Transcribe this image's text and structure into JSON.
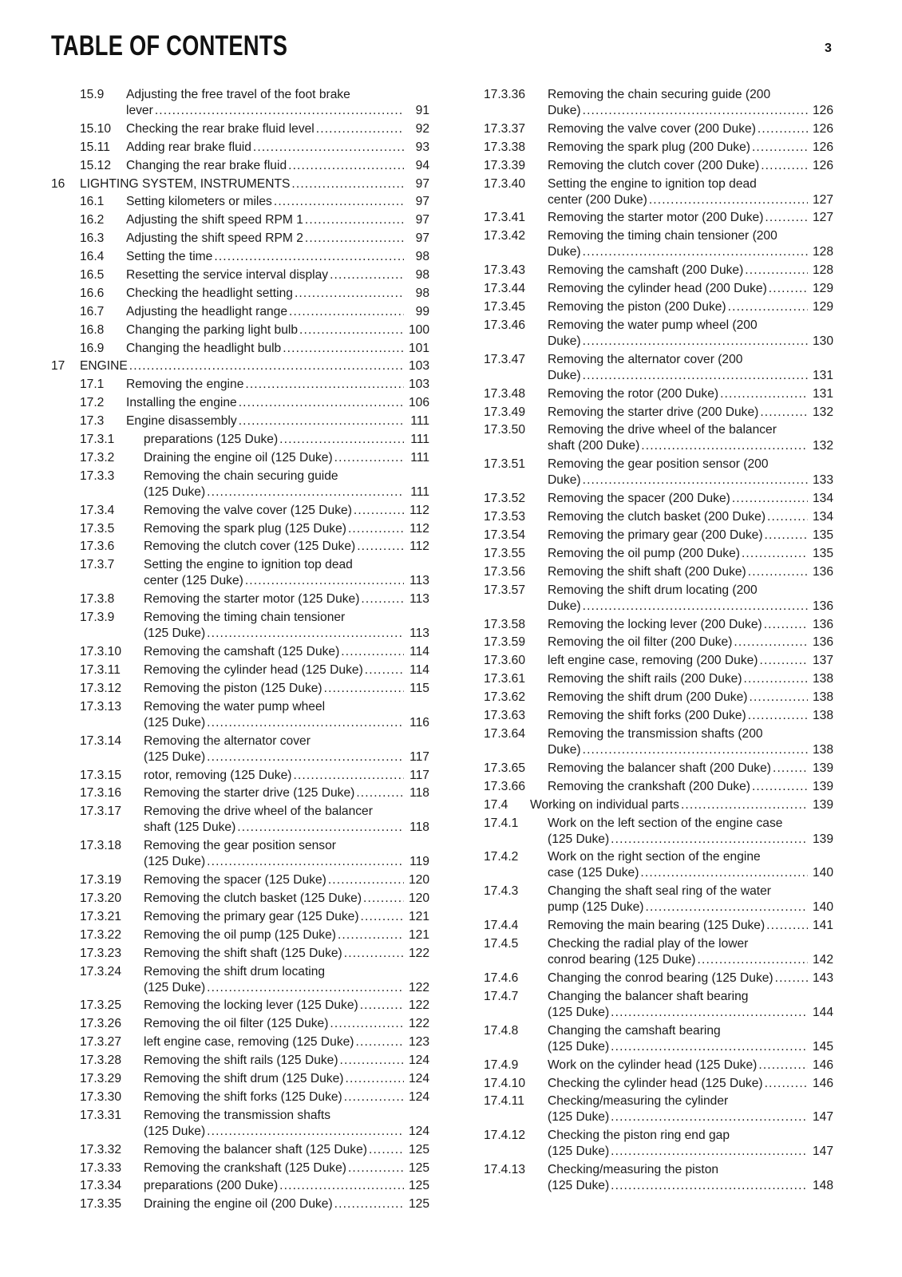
{
  "header": {
    "title": "TABLE OF CONTENTS",
    "page_number": "3"
  },
  "left": [
    {
      "n": "15.9",
      "l": 2,
      "t": [
        "Adjusting the free travel of the foot brake",
        "lever"
      ],
      "p": "91"
    },
    {
      "n": "15.10",
      "l": 2,
      "t": [
        "Checking the rear brake fluid level"
      ],
      "p": "92"
    },
    {
      "n": "15.11",
      "l": 2,
      "t": [
        "Adding rear brake fluid"
      ],
      "p": "93"
    },
    {
      "n": "15.12",
      "l": 2,
      "t": [
        "Changing the rear brake fluid"
      ],
      "p": "94"
    },
    {
      "n": "16",
      "l": 1,
      "t": [
        "LIGHTING SYSTEM, INSTRUMENTS"
      ],
      "p": "97"
    },
    {
      "n": "16.1",
      "l": 2,
      "t": [
        "Setting kilometers or miles"
      ],
      "p": "97"
    },
    {
      "n": "16.2",
      "l": 2,
      "t": [
        "Adjusting the shift speed RPM 1"
      ],
      "p": "97"
    },
    {
      "n": "16.3",
      "l": 2,
      "t": [
        "Adjusting the shift speed RPM 2"
      ],
      "p": "97"
    },
    {
      "n": "16.4",
      "l": 2,
      "t": [
        "Setting the time"
      ],
      "p": "98"
    },
    {
      "n": "16.5",
      "l": 2,
      "t": [
        "Resetting the service interval display"
      ],
      "p": "98"
    },
    {
      "n": "16.6",
      "l": 2,
      "t": [
        "Checking the headlight setting"
      ],
      "p": "98"
    },
    {
      "n": "16.7",
      "l": 2,
      "t": [
        "Adjusting the headlight range"
      ],
      "p": "99"
    },
    {
      "n": "16.8",
      "l": 2,
      "t": [
        "Changing the parking light bulb"
      ],
      "p": "100"
    },
    {
      "n": "16.9",
      "l": 2,
      "t": [
        "Changing the headlight bulb"
      ],
      "p": "101"
    },
    {
      "n": "17",
      "l": 1,
      "t": [
        "ENGINE"
      ],
      "p": "103"
    },
    {
      "n": "17.1",
      "l": 2,
      "t": [
        "Removing the engine"
      ],
      "p": "103"
    },
    {
      "n": "17.2",
      "l": 2,
      "t": [
        "Installing the engine"
      ],
      "p": "106"
    },
    {
      "n": "17.3",
      "l": 2,
      "t": [
        "Engine disassembly"
      ],
      "p": "111"
    },
    {
      "n": "17.3.1",
      "l": 3,
      "t": [
        "preparations (125 Duke)"
      ],
      "p": "111"
    },
    {
      "n": "17.3.2",
      "l": 3,
      "t": [
        "Draining the engine oil (125 Duke)"
      ],
      "p": "111"
    },
    {
      "n": "17.3.3",
      "l": 3,
      "t": [
        "Removing the chain securing guide",
        "(125 Duke)"
      ],
      "p": "111"
    },
    {
      "n": "17.3.4",
      "l": 3,
      "t": [
        "Removing the valve cover (125 Duke)"
      ],
      "p": "112"
    },
    {
      "n": "17.3.5",
      "l": 3,
      "t": [
        "Removing the spark plug (125 Duke)"
      ],
      "p": "112"
    },
    {
      "n": "17.3.6",
      "l": 3,
      "t": [
        "Removing the clutch cover (125 Duke)"
      ],
      "p": "112"
    },
    {
      "n": "17.3.7",
      "l": 3,
      "t": [
        "Setting the engine to ignition top dead",
        "center (125 Duke)"
      ],
      "p": "113"
    },
    {
      "n": "17.3.8",
      "l": 3,
      "t": [
        "Removing the starter motor (125 Duke)"
      ],
      "p": "113"
    },
    {
      "n": "17.3.9",
      "l": 3,
      "t": [
        "Removing the timing chain tensioner",
        "(125 Duke)"
      ],
      "p": "113"
    },
    {
      "n": "17.3.10",
      "l": 3,
      "t": [
        "Removing the camshaft (125 Duke)"
      ],
      "p": "114"
    },
    {
      "n": "17.3.11",
      "l": 3,
      "t": [
        "Removing the cylinder head (125 Duke)"
      ],
      "p": "114"
    },
    {
      "n": "17.3.12",
      "l": 3,
      "t": [
        "Removing the piston (125 Duke)"
      ],
      "p": "115"
    },
    {
      "n": "17.3.13",
      "l": 3,
      "t": [
        "Removing the water pump wheel",
        "(125 Duke)"
      ],
      "p": "116"
    },
    {
      "n": "17.3.14",
      "l": 3,
      "t": [
        "Removing the alternator cover",
        "(125 Duke)"
      ],
      "p": "117"
    },
    {
      "n": "17.3.15",
      "l": 3,
      "t": [
        "rotor, removing (125 Duke)"
      ],
      "p": "117"
    },
    {
      "n": "17.3.16",
      "l": 3,
      "t": [
        "Removing the starter drive (125 Duke)"
      ],
      "p": "118"
    },
    {
      "n": "17.3.17",
      "l": 3,
      "t": [
        "Removing the drive wheel of the balancer",
        "shaft (125 Duke)"
      ],
      "p": "118"
    },
    {
      "n": "17.3.18",
      "l": 3,
      "t": [
        "Removing the gear position sensor",
        "(125 Duke)"
      ],
      "p": "119"
    },
    {
      "n": "17.3.19",
      "l": 3,
      "t": [
        "Removing the spacer (125 Duke)"
      ],
      "p": "120"
    },
    {
      "n": "17.3.20",
      "l": 3,
      "t": [
        "Removing the clutch basket (125 Duke)"
      ],
      "p": "120"
    },
    {
      "n": "17.3.21",
      "l": 3,
      "t": [
        "Removing the primary gear (125 Duke)"
      ],
      "p": "121"
    },
    {
      "n": "17.3.22",
      "l": 3,
      "t": [
        "Removing the oil pump (125 Duke)"
      ],
      "p": "121"
    },
    {
      "n": "17.3.23",
      "l": 3,
      "t": [
        "Removing the shift shaft (125 Duke)"
      ],
      "p": "122"
    },
    {
      "n": "17.3.24",
      "l": 3,
      "t": [
        "Removing the shift drum locating",
        "(125 Duke)"
      ],
      "p": "122"
    },
    {
      "n": "17.3.25",
      "l": 3,
      "t": [
        "Removing the locking lever (125 Duke)"
      ],
      "p": "122"
    },
    {
      "n": "17.3.26",
      "l": 3,
      "t": [
        "Removing the oil filter (125 Duke)"
      ],
      "p": "122"
    },
    {
      "n": "17.3.27",
      "l": 3,
      "t": [
        "left engine case, removing (125 Duke)"
      ],
      "p": "123"
    },
    {
      "n": "17.3.28",
      "l": 3,
      "t": [
        "Removing the shift rails (125 Duke)"
      ],
      "p": "124"
    },
    {
      "n": "17.3.29",
      "l": 3,
      "t": [
        "Removing the shift drum (125 Duke)"
      ],
      "p": "124"
    },
    {
      "n": "17.3.30",
      "l": 3,
      "t": [
        "Removing the shift forks (125 Duke)"
      ],
      "p": "124"
    },
    {
      "n": "17.3.31",
      "l": 3,
      "t": [
        "Removing the transmission shafts",
        "(125 Duke)"
      ],
      "p": "124"
    },
    {
      "n": "17.3.32",
      "l": 3,
      "t": [
        "Removing the balancer shaft (125 Duke)"
      ],
      "p": "125"
    },
    {
      "n": "17.3.33",
      "l": 3,
      "t": [
        "Removing the crankshaft (125 Duke)"
      ],
      "p": "125"
    },
    {
      "n": "17.3.34",
      "l": 3,
      "t": [
        "preparations (200 Duke)"
      ],
      "p": "125"
    },
    {
      "n": "17.3.35",
      "l": 3,
      "t": [
        "Draining the engine oil (200 Duke)"
      ],
      "p": "125"
    }
  ],
  "right": [
    {
      "n": "17.3.36",
      "l": 3,
      "t": [
        "Removing the chain securing guide (200",
        "Duke)"
      ],
      "p": "126"
    },
    {
      "n": "17.3.37",
      "l": 3,
      "t": [
        "Removing the valve cover (200 Duke)"
      ],
      "p": "126"
    },
    {
      "n": "17.3.38",
      "l": 3,
      "t": [
        "Removing the spark plug (200 Duke)"
      ],
      "p": "126"
    },
    {
      "n": "17.3.39",
      "l": 3,
      "t": [
        "Removing the clutch cover (200 Duke)"
      ],
      "p": "126"
    },
    {
      "n": "17.3.40",
      "l": 3,
      "t": [
        "Setting the engine to ignition top dead",
        "center (200 Duke)"
      ],
      "p": "127"
    },
    {
      "n": "17.3.41",
      "l": 3,
      "t": [
        "Removing the starter motor (200 Duke)"
      ],
      "p": "127"
    },
    {
      "n": "17.3.42",
      "l": 3,
      "t": [
        "Removing the timing chain tensioner (200",
        "Duke)"
      ],
      "p": "128"
    },
    {
      "n": "17.3.43",
      "l": 3,
      "t": [
        "Removing the camshaft (200 Duke)"
      ],
      "p": "128"
    },
    {
      "n": "17.3.44",
      "l": 3,
      "t": [
        "Removing the cylinder head (200 Duke)"
      ],
      "p": "129"
    },
    {
      "n": "17.3.45",
      "l": 3,
      "t": [
        "Removing the piston (200 Duke)"
      ],
      "p": "129"
    },
    {
      "n": "17.3.46",
      "l": 3,
      "t": [
        "Removing the water pump wheel (200",
        "Duke)"
      ],
      "p": "130"
    },
    {
      "n": "17.3.47",
      "l": 3,
      "t": [
        "Removing the alternator cover (200",
        "Duke)"
      ],
      "p": "131"
    },
    {
      "n": "17.3.48",
      "l": 3,
      "t": [
        "Removing the rotor (200 Duke)"
      ],
      "p": "131"
    },
    {
      "n": "17.3.49",
      "l": 3,
      "t": [
        "Removing the starter drive (200 Duke)"
      ],
      "p": "132"
    },
    {
      "n": "17.3.50",
      "l": 3,
      "t": [
        "Removing the drive wheel of the balancer",
        "shaft (200 Duke)"
      ],
      "p": "132"
    },
    {
      "n": "17.3.51",
      "l": 3,
      "t": [
        "Removing the gear position sensor (200",
        "Duke)"
      ],
      "p": "133"
    },
    {
      "n": "17.3.52",
      "l": 3,
      "t": [
        "Removing the spacer (200 Duke)"
      ],
      "p": "134"
    },
    {
      "n": "17.3.53",
      "l": 3,
      "t": [
        "Removing the clutch basket (200 Duke)"
      ],
      "p": "134"
    },
    {
      "n": "17.3.54",
      "l": 3,
      "t": [
        "Removing the primary gear (200 Duke)"
      ],
      "p": "135"
    },
    {
      "n": "17.3.55",
      "l": 3,
      "t": [
        "Removing the oil pump (200 Duke)"
      ],
      "p": "135"
    },
    {
      "n": "17.3.56",
      "l": 3,
      "t": [
        "Removing the shift shaft (200 Duke)"
      ],
      "p": "136"
    },
    {
      "n": "17.3.57",
      "l": 3,
      "t": [
        "Removing the shift drum locating (200",
        "Duke)"
      ],
      "p": "136"
    },
    {
      "n": "17.3.58",
      "l": 3,
      "t": [
        "Removing the locking lever (200 Duke)"
      ],
      "p": "136"
    },
    {
      "n": "17.3.59",
      "l": 3,
      "t": [
        "Removing the oil filter (200 Duke)"
      ],
      "p": "136"
    },
    {
      "n": "17.3.60",
      "l": 3,
      "t": [
        "left engine case, removing (200 Duke)"
      ],
      "p": "137"
    },
    {
      "n": "17.3.61",
      "l": 3,
      "t": [
        "Removing the shift rails (200 Duke)"
      ],
      "p": "138"
    },
    {
      "n": "17.3.62",
      "l": 3,
      "t": [
        "Removing the shift drum (200 Duke)"
      ],
      "p": "138"
    },
    {
      "n": "17.3.63",
      "l": 3,
      "t": [
        "Removing the shift forks (200 Duke)"
      ],
      "p": "138"
    },
    {
      "n": "17.3.64",
      "l": 3,
      "t": [
        "Removing the transmission shafts (200",
        "Duke)"
      ],
      "p": "138"
    },
    {
      "n": "17.3.65",
      "l": 3,
      "t": [
        "Removing the balancer shaft (200 Duke)"
      ],
      "p": "139"
    },
    {
      "n": "17.3.66",
      "l": 3,
      "t": [
        "Removing the crankshaft (200 Duke)"
      ],
      "p": "139"
    },
    {
      "n": "17.4",
      "l": 2,
      "t": [
        "Working on individual parts"
      ],
      "p": "139"
    },
    {
      "n": "17.4.1",
      "l": 3,
      "t": [
        "Work on the left section of the engine case",
        "(125 Duke)"
      ],
      "p": "139"
    },
    {
      "n": "17.4.2",
      "l": 3,
      "t": [
        "Work on the right section of the engine",
        "case (125 Duke)"
      ],
      "p": "140"
    },
    {
      "n": "17.4.3",
      "l": 3,
      "t": [
        "Changing the shaft seal ring of the water",
        "pump (125 Duke)"
      ],
      "p": "140"
    },
    {
      "n": "17.4.4",
      "l": 3,
      "t": [
        "Removing the main bearing (125 Duke)"
      ],
      "p": "141"
    },
    {
      "n": "17.4.5",
      "l": 3,
      "t": [
        "Checking the radial play of the lower",
        "conrod bearing (125 Duke)"
      ],
      "p": "142"
    },
    {
      "n": "17.4.6",
      "l": 3,
      "t": [
        "Changing the conrod bearing (125 Duke)"
      ],
      "p": "143"
    },
    {
      "n": "17.4.7",
      "l": 3,
      "t": [
        "Changing the balancer shaft bearing",
        "(125 Duke)"
      ],
      "p": "144"
    },
    {
      "n": "17.4.8",
      "l": 3,
      "t": [
        "Changing the camshaft bearing",
        "(125 Duke)"
      ],
      "p": "145"
    },
    {
      "n": "17.4.9",
      "l": 3,
      "t": [
        "Work on the cylinder head (125 Duke)"
      ],
      "p": "146"
    },
    {
      "n": "17.4.10",
      "l": 3,
      "t": [
        "Checking the cylinder head (125 Duke)"
      ],
      "p": "146"
    },
    {
      "n": "17.4.11",
      "l": 3,
      "t": [
        "Checking/measuring the cylinder",
        "(125 Duke)"
      ],
      "p": "147"
    },
    {
      "n": "17.4.12",
      "l": 3,
      "t": [
        "Checking the piston ring end gap",
        "(125 Duke)"
      ],
      "p": "147"
    },
    {
      "n": "17.4.13",
      "l": 3,
      "t": [
        "Checking/measuring the piston",
        "(125 Duke)"
      ],
      "p": "148"
    }
  ]
}
